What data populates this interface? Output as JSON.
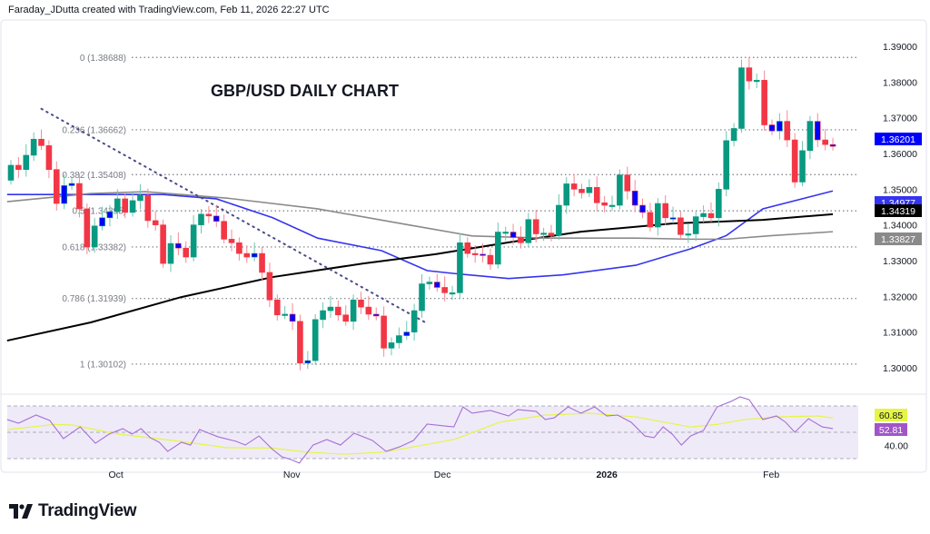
{
  "header": {
    "attribution": "Faraday_JDutta created with TradingView.com, Feb 11, 2026 22:27 UTC"
  },
  "footer": {
    "brand": "TradingView"
  },
  "colors": {
    "up": "#089981",
    "down": "#f23645",
    "neutral": "#0000ff",
    "ma_fast": "#3434f0",
    "ma_mid": "#000000",
    "ma_slow": "#8a8a8a",
    "rsi": "#a56fd6",
    "rsi_ma": "#e6f545",
    "rsi_bg": "#efeaf8"
  },
  "chart_data": [
    {
      "type": "candlestick",
      "title": "GBP/USD DAILY CHART",
      "xlabel": "",
      "ylabel": "",
      "ylim": [
        1.2955,
        1.3945
      ],
      "y_ticks": [
        "1.39000",
        "1.38000",
        "1.37000",
        "1.36000",
        "1.35000",
        "1.34000",
        "1.33000",
        "1.32000",
        "1.31000",
        "1.30000"
      ],
      "x_ticks": [
        {
          "label": "Oct",
          "bar": 13.8
        },
        {
          "label": "Nov",
          "bar": 36.9
        },
        {
          "label": "Dec",
          "bar": 56.7
        },
        {
          "label": "2026",
          "bar": 78.3
        },
        {
          "label": "Feb",
          "bar": 99.9
        }
      ],
      "closes": [
        1.3567,
        1.3555,
        1.3595,
        1.364,
        1.3622,
        1.3555,
        1.346,
        1.351,
        1.3516,
        1.3445,
        1.3338,
        1.3397,
        1.342,
        1.3437,
        1.3473,
        1.3435,
        1.3468,
        1.3483,
        1.3412,
        1.34,
        1.3292,
        1.3348,
        1.3335,
        1.331,
        1.34,
        1.343,
        1.3425,
        1.341,
        1.336,
        1.335,
        1.332,
        1.331,
        1.332,
        1.3267,
        1.319,
        1.3148,
        1.315,
        1.313,
        1.3013,
        1.302,
        1.3135,
        1.316,
        1.317,
        1.3148,
        1.313,
        1.319,
        1.317,
        1.315,
        1.3145,
        1.3055,
        1.307,
        1.309,
        1.31,
        1.316,
        1.3235,
        1.324,
        1.3225,
        1.321,
        1.321,
        1.335,
        1.332,
        1.3318,
        1.3315,
        1.329,
        1.338,
        1.338,
        1.3365,
        1.335,
        1.3415,
        1.3375,
        1.3377,
        1.337,
        1.3455,
        1.3515,
        1.35,
        1.349,
        1.3505,
        1.3462,
        1.3455,
        1.3455,
        1.354,
        1.3495,
        1.3455,
        1.3435,
        1.3394,
        1.346,
        1.342,
        1.342,
        1.3373,
        1.3375,
        1.3423,
        1.3432,
        1.342,
        1.35,
        1.3636,
        1.367,
        1.384,
        1.3803,
        1.3805,
        1.368,
        1.3663,
        1.369,
        1.3638,
        1.352,
        1.3608,
        1.369,
        1.3638,
        1.3625,
        1.362
      ],
      "neutral_bars": [
        7,
        8,
        12,
        13,
        22,
        27,
        32,
        37,
        39,
        48,
        52,
        56,
        62,
        66,
        82,
        83,
        87,
        100,
        101,
        106,
        108
      ],
      "moving_averages": [
        {
          "name": "MA fast",
          "color": "#3434f0",
          "last": "1.34977",
          "points": [
            [
              -0.5,
              1.3485
            ],
            [
              10,
              1.3485
            ],
            [
              20,
              1.3485
            ],
            [
              27,
              1.3473
            ],
            [
              34.4,
              1.342
            ],
            [
              40.3,
              1.3363
            ],
            [
              48.7,
              1.3328
            ],
            [
              54.7,
              1.3272
            ],
            [
              58.2,
              1.3264
            ],
            [
              65.4,
              1.325
            ],
            [
              72.5,
              1.326
            ],
            [
              82.1,
              1.3287
            ],
            [
              89.3,
              1.3333
            ],
            [
              94,
              1.337
            ],
            [
              98.8,
              1.3445
            ],
            [
              108,
              1.3495
            ]
          ]
        },
        {
          "name": "MA mid",
          "color": "#000000",
          "last": "1.34319",
          "points": [
            [
              -0.5,
              1.3076
            ],
            [
              10.5,
              1.3127
            ],
            [
              22.4,
              1.3198
            ],
            [
              34.4,
              1.3254
            ],
            [
              46.3,
              1.3292
            ],
            [
              55.8,
              1.3318
            ],
            [
              65.4,
              1.3351
            ],
            [
              74.9,
              1.3381
            ],
            [
              86.9,
              1.3404
            ],
            [
              98.8,
              1.3414
            ],
            [
              108,
              1.343
            ]
          ]
        },
        {
          "name": "MA slow",
          "color": "#8a8a8a",
          "last": "1.33827",
          "points": [
            [
              -0.5,
              1.3465
            ],
            [
              10.5,
              1.3488
            ],
            [
              17.7,
              1.3493
            ],
            [
              28.4,
              1.3475
            ],
            [
              40.3,
              1.3445
            ],
            [
              52.3,
              1.34
            ],
            [
              60.6,
              1.3369
            ],
            [
              70.2,
              1.3363
            ],
            [
              82.1,
              1.3363
            ],
            [
              89.3,
              1.336
            ],
            [
              94,
              1.336
            ],
            [
              100,
              1.337
            ],
            [
              108,
              1.3381
            ]
          ]
        }
      ],
      "last_price": "1.36201",
      "trendline": [
        [
          4,
          1.3725
        ],
        [
          54.7,
          1.3124
        ]
      ],
      "fibonacci": [
        {
          "label": "0 (1.38688)",
          "price": 1.38688
        },
        {
          "label": "0.236 (1.36662)",
          "price": 1.36662
        },
        {
          "label": "0.382 (1.35408)",
          "price": 1.35408
        },
        {
          "label": "0.5 (1.34395)",
          "price": 1.34395
        },
        {
          "label": "0.618 (1.33382)",
          "price": 1.33382
        },
        {
          "label": "0.786 (1.31939)",
          "price": 1.31939
        },
        {
          "label": "1 (1.30102)",
          "price": 1.30102
        }
      ]
    },
    {
      "type": "line",
      "title": "RSI",
      "ylim": [
        30,
        70
      ],
      "y_ticks": [
        "40.00"
      ],
      "rsi_last": "52.81",
      "rsi_ma_last": "60.85",
      "rsi": {
        "bars": [
          -0.5,
          1,
          3.3,
          5.1,
          6.9,
          9.1,
          11.1,
          12.9,
          14.7,
          15.9,
          17.1,
          18.3,
          19.5,
          20.6,
          22.4,
          23.6,
          24.8,
          26,
          27.2,
          29.6,
          30.8,
          32.6,
          34.4,
          35.6,
          36.8,
          37.9,
          39.7,
          41.5,
          43.3,
          45.1,
          47.5,
          49.3,
          51.1,
          52.9,
          54.7,
          57,
          58.2,
          59.4,
          60.6,
          63,
          65.4,
          66.6,
          69,
          70.2,
          71.4,
          73.2,
          74.9,
          76.7,
          78.3,
          79.7,
          81.5,
          83.3,
          84.5,
          85.7,
          86.9,
          88.1,
          89.3,
          91,
          92.8,
          94.6,
          95.8,
          97,
          98.8,
          100.6,
          101.8,
          103,
          104.8,
          106.6,
          108
        ],
        "values": [
          59.7,
          56.9,
          63.1,
          59,
          45.2,
          54.1,
          41.7,
          48.6,
          52.8,
          48.6,
          52.8,
          45.9,
          42.4,
          35.5,
          42.4,
          40.3,
          52.1,
          49.3,
          46.6,
          43.1,
          40.3,
          47.2,
          36.9,
          31.4,
          29.3,
          26.6,
          40.3,
          44.5,
          40.3,
          49.3,
          43.8,
          35.5,
          39,
          43.8,
          56.2,
          54.8,
          54.1,
          69.3,
          64.5,
          66.6,
          62.4,
          67.2,
          65.9,
          59.7,
          61,
          69.3,
          64.5,
          69.3,
          62.4,
          63.1,
          57.6,
          47.2,
          45.9,
          54.1,
          48.6,
          40.3,
          47.2,
          51.4,
          69.3,
          73.4,
          76.9,
          74.8,
          59.7,
          62.4,
          57.6,
          50,
          60.3,
          54.1,
          52.81
        ]
      },
      "rsi_ma": {
        "bars": [
          -0.5,
          5.7,
          8.1,
          14.1,
          22.4,
          28.4,
          34.4,
          39.1,
          43.9,
          48.7,
          52.3,
          58.2,
          64.2,
          70.2,
          76.1,
          82.1,
          89.3,
          92.8,
          96.4,
          101.2,
          106,
          108
        ],
        "values": [
          52,
          56,
          55.5,
          48.6,
          43,
          38.3,
          38,
          34.8,
          33.4,
          34.8,
          38.3,
          44.5,
          57.6,
          63,
          64.5,
          61.7,
          54,
          56,
          59.7,
          61.7,
          62.4,
          60.85
        ]
      }
    }
  ]
}
